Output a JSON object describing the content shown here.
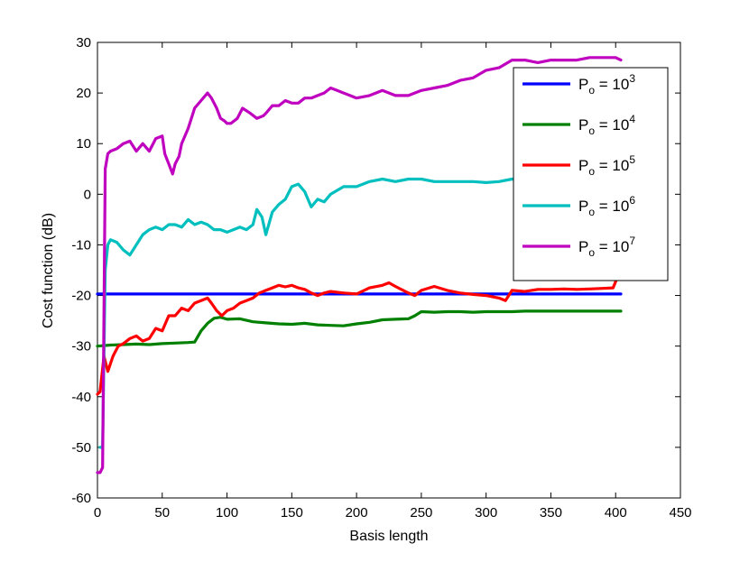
{
  "chart_data": {
    "type": "line",
    "title": "",
    "xlabel": "Basis length",
    "ylabel": "Cost function (dB)",
    "xlim": [
      0,
      450
    ],
    "ylim": [
      -60,
      30
    ],
    "xticks": [
      "0",
      "50",
      "100",
      "150",
      "200",
      "250",
      "300",
      "350",
      "400",
      "450"
    ],
    "yticks": [
      "-60",
      "-50",
      "-40",
      "-30",
      "-20",
      "-10",
      "0",
      "10",
      "20",
      "30"
    ],
    "grid": false,
    "legend_position": "top-right",
    "series": [
      {
        "name": "P_o = 10^3",
        "label_base": "P",
        "label_sub": "o",
        "label_mid": " = 10",
        "label_sup": "3",
        "color": "#0000ff",
        "x": [
          0,
          404
        ],
        "y": [
          -19.7,
          -19.7
        ]
      },
      {
        "name": "P_o = 10^4",
        "label_base": "P",
        "label_sub": "o",
        "label_mid": " = 10",
        "label_sup": "4",
        "color": "#008000",
        "x": [
          0,
          10,
          20,
          30,
          40,
          50,
          60,
          70,
          75,
          80,
          85,
          90,
          95,
          100,
          110,
          120,
          130,
          140,
          150,
          160,
          170,
          180,
          190,
          200,
          210,
          220,
          230,
          240,
          245,
          250,
          260,
          270,
          280,
          290,
          300,
          310,
          320,
          330,
          340,
          350,
          360,
          370,
          380,
          390,
          404
        ],
        "y": [
          -30,
          -29.8,
          -29.7,
          -29.6,
          -29.7,
          -29.5,
          -29.4,
          -29.3,
          -29.2,
          -27,
          -25.5,
          -24.5,
          -24.3,
          -24.7,
          -24.6,
          -25.2,
          -25.4,
          -25.6,
          -25.7,
          -25.5,
          -25.8,
          -25.9,
          -26,
          -25.6,
          -25.3,
          -24.8,
          -24.7,
          -24.6,
          -24,
          -23.2,
          -23.3,
          -23.2,
          -23.2,
          -23.3,
          -23.2,
          -23.2,
          -23.2,
          -23.1,
          -23.1,
          -23.1,
          -23.1,
          -23.1,
          -23.1,
          -23.1,
          -23.1
        ]
      },
      {
        "name": "P_o = 10^5",
        "label_base": "P",
        "label_sub": "o",
        "label_mid": " = 10",
        "label_sup": "5",
        "color": "#ff0000",
        "x": [
          0,
          2,
          5,
          8,
          12,
          16,
          20,
          25,
          30,
          35,
          40,
          45,
          50,
          55,
          60,
          65,
          70,
          75,
          80,
          85,
          88,
          92,
          96,
          100,
          105,
          110,
          115,
          120,
          125,
          130,
          135,
          140,
          145,
          150,
          155,
          160,
          165,
          170,
          175,
          180,
          190,
          200,
          210,
          220,
          225,
          230,
          240,
          245,
          250,
          260,
          270,
          280,
          290,
          300,
          310,
          315,
          320,
          330,
          340,
          350,
          360,
          370,
          380,
          390,
          398,
          402,
          404
        ],
        "y": [
          -39.5,
          -39,
          -32,
          -35,
          -32,
          -30,
          -29.5,
          -28.5,
          -28,
          -29,
          -28.5,
          -26.5,
          -27,
          -24,
          -24,
          -22.5,
          -23,
          -21.5,
          -21,
          -20.5,
          -21.5,
          -23,
          -24,
          -23,
          -22.5,
          -21.5,
          -21,
          -20.5,
          -19.5,
          -19,
          -18.5,
          -18,
          -18.3,
          -18,
          -18.5,
          -18.8,
          -19.5,
          -20,
          -19.5,
          -19.2,
          -19.5,
          -19.7,
          -18.5,
          -18,
          -17.5,
          -18.2,
          -19.5,
          -20,
          -19,
          -18.2,
          -19,
          -19.5,
          -19.8,
          -20,
          -20.5,
          -21,
          -19,
          -19.2,
          -18.8,
          -18.8,
          -18.7,
          -18.8,
          -18.7,
          -18.6,
          -18.5,
          -16,
          -16
        ]
      },
      {
        "name": "P_o = 10^6",
        "label_base": "P",
        "label_sub": "o",
        "label_mid": " = 10",
        "label_sup": "6",
        "color": "#00bfbf",
        "x": [
          2,
          4,
          6,
          8,
          10,
          15,
          20,
          25,
          30,
          35,
          40,
          45,
          50,
          55,
          60,
          65,
          70,
          75,
          80,
          85,
          90,
          95,
          100,
          105,
          110,
          115,
          120,
          123,
          127,
          130,
          135,
          140,
          145,
          150,
          155,
          160,
          165,
          170,
          175,
          180,
          190,
          200,
          210,
          220,
          230,
          240,
          250,
          260,
          270,
          280,
          290,
          300,
          310,
          320,
          325
        ],
        "y": [
          -50,
          -50,
          -15,
          -10,
          -9,
          -9.5,
          -11,
          -12,
          -10,
          -8,
          -7,
          -6.5,
          -7,
          -6,
          -6,
          -6.5,
          -5,
          -6,
          -5.5,
          -6,
          -7,
          -7,
          -7.5,
          -7,
          -6.5,
          -7,
          -6,
          -3,
          -4.5,
          -8,
          -3.5,
          -2,
          -1,
          1.5,
          2,
          0.5,
          -2.5,
          -1,
          -1.5,
          0,
          1.5,
          1.5,
          2.5,
          3,
          2.5,
          3,
          3,
          2.5,
          2.5,
          2.5,
          2.5,
          2.3,
          2.5,
          3,
          2.8
        ]
      },
      {
        "name": "P_o = 10^7",
        "label_base": "P",
        "label_sub": "o",
        "label_mid": " = 10",
        "label_sup": "7",
        "color": "#bf00bf",
        "x": [
          0,
          2,
          4,
          6,
          8,
          10,
          15,
          20,
          25,
          30,
          35,
          40,
          45,
          50,
          52,
          55,
          58,
          60,
          63,
          65,
          70,
          75,
          80,
          85,
          88,
          92,
          95,
          98,
          100,
          103,
          108,
          112,
          118,
          123,
          128,
          130,
          135,
          140,
          145,
          150,
          155,
          160,
          165,
          170,
          175,
          180,
          185,
          190,
          195,
          200,
          210,
          220,
          230,
          240,
          250,
          260,
          270,
          280,
          290,
          300,
          310,
          320,
          330,
          340,
          350,
          360,
          370,
          380,
          390,
          395,
          400,
          404
        ],
        "y": [
          -55,
          -55,
          -54,
          5,
          8,
          8.5,
          9,
          10,
          10.5,
          8.5,
          10,
          8.5,
          11,
          11.5,
          8,
          6,
          4,
          6,
          7.5,
          10,
          13,
          17,
          18.5,
          20,
          19,
          17,
          15,
          14.5,
          14,
          14,
          15,
          17,
          16,
          15,
          15.5,
          16,
          17.5,
          17.5,
          18.5,
          18,
          18,
          19,
          19,
          19.5,
          20,
          21,
          20.5,
          20,
          19.5,
          19,
          19.5,
          20.5,
          19.5,
          19.5,
          20.5,
          21,
          21.5,
          22.5,
          23,
          24.5,
          25,
          26.5,
          26.5,
          26,
          26.5,
          26.5,
          26.5,
          27,
          27,
          27,
          27,
          26.5
        ]
      }
    ]
  }
}
